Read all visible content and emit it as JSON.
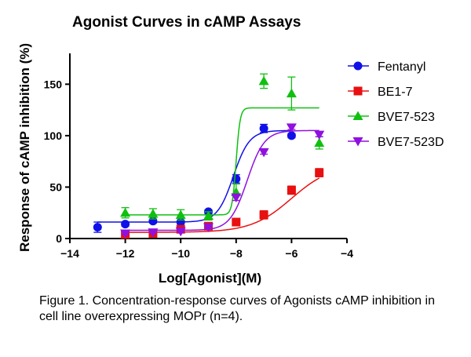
{
  "chart_data": {
    "type": "scatter",
    "title": "Agonist Curves in cAMP Assays",
    "xlabel": "Log[Agonist](M)",
    "ylabel": "Response of cAMP inhibition (%)",
    "xlim": [
      -14,
      -4
    ],
    "ylim": [
      0,
      180
    ],
    "x_ticks": [
      -14,
      -12,
      -10,
      -8,
      -6,
      -4
    ],
    "y_ticks": [
      0,
      50,
      100,
      150
    ],
    "legend_position": "right",
    "series": [
      {
        "name": "Fentanyl",
        "color": "#1010e8",
        "marker": "circle",
        "points": [
          {
            "x": -13,
            "y": 11,
            "err": 5
          },
          {
            "x": -12,
            "y": 14,
            "err": 2
          },
          {
            "x": -11,
            "y": 17,
            "err": 2
          },
          {
            "x": -10,
            "y": 16,
            "err": 2
          },
          {
            "x": -9,
            "y": 26,
            "err": 2
          },
          {
            "x": -8,
            "y": 58,
            "err": 4
          },
          {
            "x": -7,
            "y": 107,
            "err": 4
          },
          {
            "x": -6,
            "y": 100,
            "err": 2
          }
        ],
        "fit": {
          "bottom": 16,
          "top": 105,
          "logEC50": -8.1,
          "hill": 1.5
        }
      },
      {
        "name": "BE1-7",
        "color": "#e81010",
        "marker": "square",
        "points": [
          {
            "x": -12,
            "y": 4,
            "err": 1
          },
          {
            "x": -11,
            "y": 5,
            "err": 2
          },
          {
            "x": -10,
            "y": 9,
            "err": 2
          },
          {
            "x": -9,
            "y": 12,
            "err": 2
          },
          {
            "x": -8,
            "y": 16,
            "err": 2
          },
          {
            "x": -7,
            "y": 23,
            "err": 4
          },
          {
            "x": -6,
            "y": 47,
            "err": 4
          },
          {
            "x": -5,
            "y": 64,
            "err": 4
          }
        ],
        "fit": {
          "bottom": 6,
          "top": 72,
          "logEC50": -6.0,
          "hill": 0.6
        }
      },
      {
        "name": "BVE7-523",
        "color": "#10c010",
        "marker": "triangle-up",
        "points": [
          {
            "x": -12,
            "y": 25,
            "err": 5
          },
          {
            "x": -11,
            "y": 24,
            "err": 5
          },
          {
            "x": -10,
            "y": 23,
            "err": 5
          },
          {
            "x": -9,
            "y": 22,
            "err": 4
          },
          {
            "x": -8,
            "y": 45,
            "err": 8
          },
          {
            "x": -7,
            "y": 153,
            "err": 7
          },
          {
            "x": -6,
            "y": 141,
            "err": 16
          },
          {
            "x": -5,
            "y": 93,
            "err": 6
          }
        ],
        "fit": {
          "bottom": 23,
          "top": 127,
          "logEC50": -8.0,
          "hill": 6
        }
      },
      {
        "name": "BVE7-523D",
        "color": "#9010e0",
        "marker": "triangle-down",
        "points": [
          {
            "x": -12,
            "y": 5,
            "err": 1
          },
          {
            "x": -11,
            "y": 6,
            "err": 1
          },
          {
            "x": -10,
            "y": 7,
            "err": 1
          },
          {
            "x": -9,
            "y": 11,
            "err": 1
          },
          {
            "x": -8,
            "y": 40,
            "err": 3
          },
          {
            "x": -7,
            "y": 84,
            "err": 2
          },
          {
            "x": -6,
            "y": 108,
            "err": 2
          },
          {
            "x": -5,
            "y": 101,
            "err": 2
          }
        ],
        "fit": {
          "bottom": 8,
          "top": 105,
          "logEC50": -7.6,
          "hill": 1.4
        }
      }
    ]
  },
  "caption": "Figure 1. Concentration-response curves of Agonists cAMP inhibition in cell line overexpressing MOPr  (n=4)."
}
